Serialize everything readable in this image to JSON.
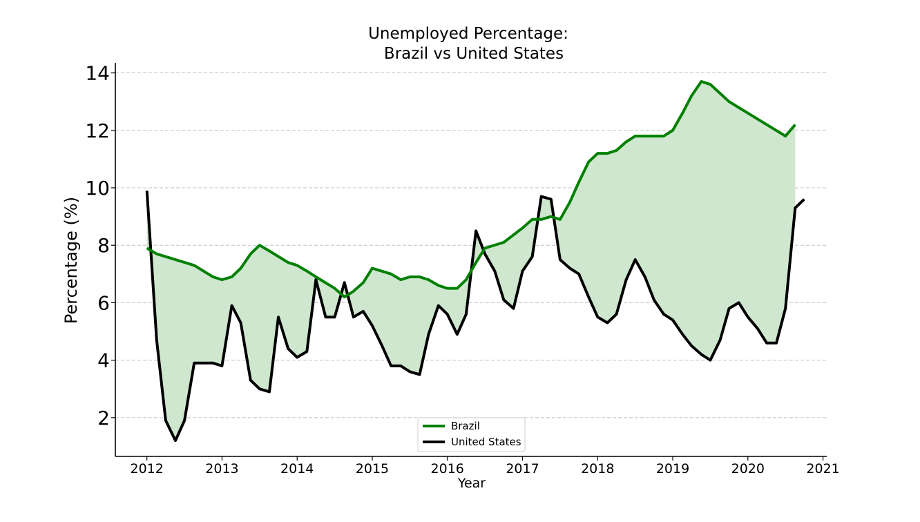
{
  "chart_data": {
    "type": "line",
    "title_line1": "Unemployed Percentage:",
    "title_line2": "Brazil vs United States",
    "xlabel": "Year",
    "ylabel": "Percentage (%)",
    "xlim": [
      2011.58,
      2021.05
    ],
    "ylim": [
      0.65,
      14.35
    ],
    "x_ticks": [
      2012,
      2013,
      2014,
      2015,
      2016,
      2017,
      2018,
      2019,
      2020,
      2021
    ],
    "y_ticks": [
      2,
      4,
      6,
      8,
      10,
      12,
      14
    ],
    "grid": "horizontal dashed",
    "legend_position": "bottom-center",
    "fill_between": true,
    "colors": {
      "brazil": "#008000",
      "united_states": "#000000",
      "fill": "#cfe6cf",
      "grid": "#c0c0c0"
    },
    "series": [
      {
        "name": "Brazil",
        "color": "#008000",
        "points": [
          [
            2012.0,
            7.9
          ],
          [
            2012.13,
            7.7
          ],
          [
            2012.38,
            7.5
          ],
          [
            2012.63,
            7.3
          ],
          [
            2012.88,
            6.9
          ],
          [
            2013.0,
            6.8
          ],
          [
            2013.13,
            6.9
          ],
          [
            2013.25,
            7.2
          ],
          [
            2013.38,
            7.7
          ],
          [
            2013.5,
            8.0
          ],
          [
            2013.63,
            7.8
          ],
          [
            2013.88,
            7.4
          ],
          [
            2014.0,
            7.3
          ],
          [
            2014.13,
            7.1
          ],
          [
            2014.25,
            6.9
          ],
          [
            2014.5,
            6.5
          ],
          [
            2014.63,
            6.2
          ],
          [
            2014.75,
            6.4
          ],
          [
            2014.88,
            6.7
          ],
          [
            2015.0,
            7.2
          ],
          [
            2015.25,
            7.0
          ],
          [
            2015.38,
            6.8
          ],
          [
            2015.5,
            6.9
          ],
          [
            2015.63,
            6.9
          ],
          [
            2015.75,
            6.8
          ],
          [
            2015.88,
            6.6
          ],
          [
            2016.0,
            6.5
          ],
          [
            2016.13,
            6.5
          ],
          [
            2016.25,
            6.8
          ],
          [
            2016.38,
            7.4
          ],
          [
            2016.5,
            7.9
          ],
          [
            2016.75,
            8.1
          ],
          [
            2017.0,
            8.6
          ],
          [
            2017.13,
            8.9
          ],
          [
            2017.25,
            8.9
          ],
          [
            2017.38,
            9.0
          ],
          [
            2017.5,
            8.9
          ],
          [
            2017.63,
            9.5
          ],
          [
            2017.75,
            10.2
          ],
          [
            2017.88,
            10.9
          ],
          [
            2018.0,
            11.2
          ],
          [
            2018.13,
            11.2
          ],
          [
            2018.25,
            11.3
          ],
          [
            2018.38,
            11.6
          ],
          [
            2018.5,
            11.8
          ],
          [
            2018.75,
            11.8
          ],
          [
            2018.88,
            11.8
          ],
          [
            2019.0,
            12.0
          ],
          [
            2019.13,
            12.6
          ],
          [
            2019.25,
            13.2
          ],
          [
            2019.38,
            13.7
          ],
          [
            2019.5,
            13.6
          ],
          [
            2019.75,
            13.0
          ],
          [
            2020.5,
            11.8
          ],
          [
            2020.63,
            12.2
          ]
        ]
      },
      {
        "name": "United States",
        "color": "#000000",
        "points": [
          [
            2012.0,
            9.9
          ],
          [
            2012.13,
            4.7
          ],
          [
            2012.25,
            1.9
          ],
          [
            2012.38,
            1.2
          ],
          [
            2012.5,
            1.9
          ],
          [
            2012.63,
            3.9
          ],
          [
            2012.88,
            3.9
          ],
          [
            2013.0,
            3.8
          ],
          [
            2013.13,
            5.9
          ],
          [
            2013.25,
            5.3
          ],
          [
            2013.38,
            3.3
          ],
          [
            2013.5,
            3.0
          ],
          [
            2013.63,
            2.9
          ],
          [
            2013.75,
            5.5
          ],
          [
            2013.88,
            4.4
          ],
          [
            2014.0,
            4.1
          ],
          [
            2014.13,
            4.3
          ],
          [
            2014.25,
            6.8
          ],
          [
            2014.38,
            5.5
          ],
          [
            2014.5,
            5.5
          ],
          [
            2014.63,
            6.7
          ],
          [
            2014.75,
            5.5
          ],
          [
            2014.88,
            5.7
          ],
          [
            2015.0,
            5.2
          ],
          [
            2015.13,
            4.5
          ],
          [
            2015.25,
            3.8
          ],
          [
            2015.38,
            3.8
          ],
          [
            2015.5,
            3.6
          ],
          [
            2015.63,
            3.5
          ],
          [
            2015.75,
            4.9
          ],
          [
            2015.88,
            5.9
          ],
          [
            2016.0,
            5.6
          ],
          [
            2016.13,
            4.9
          ],
          [
            2016.25,
            5.6
          ],
          [
            2016.38,
            8.5
          ],
          [
            2016.5,
            7.7
          ],
          [
            2016.63,
            7.1
          ],
          [
            2016.75,
            6.1
          ],
          [
            2016.88,
            5.8
          ],
          [
            2017.0,
            7.1
          ],
          [
            2017.13,
            7.6
          ],
          [
            2017.25,
            9.7
          ],
          [
            2017.38,
            9.6
          ],
          [
            2017.5,
            7.5
          ],
          [
            2017.63,
            7.2
          ],
          [
            2017.75,
            7.0
          ],
          [
            2017.88,
            6.2
          ],
          [
            2018.0,
            5.5
          ],
          [
            2018.13,
            5.3
          ],
          [
            2018.25,
            5.6
          ],
          [
            2018.38,
            6.8
          ],
          [
            2018.5,
            7.5
          ],
          [
            2018.63,
            6.9
          ],
          [
            2018.75,
            6.1
          ],
          [
            2018.88,
            5.6
          ],
          [
            2019.0,
            5.4
          ],
          [
            2019.13,
            4.9
          ],
          [
            2019.25,
            4.5
          ],
          [
            2019.38,
            4.2
          ],
          [
            2019.5,
            4.0
          ],
          [
            2019.63,
            4.7
          ],
          [
            2019.75,
            5.8
          ],
          [
            2019.88,
            6.0
          ],
          [
            2020.0,
            5.5
          ],
          [
            2020.13,
            5.1
          ],
          [
            2020.25,
            4.6
          ],
          [
            2020.38,
            4.6
          ],
          [
            2020.5,
            5.8
          ],
          [
            2020.63,
            9.3
          ],
          [
            2020.75,
            9.6
          ]
        ]
      }
    ]
  }
}
